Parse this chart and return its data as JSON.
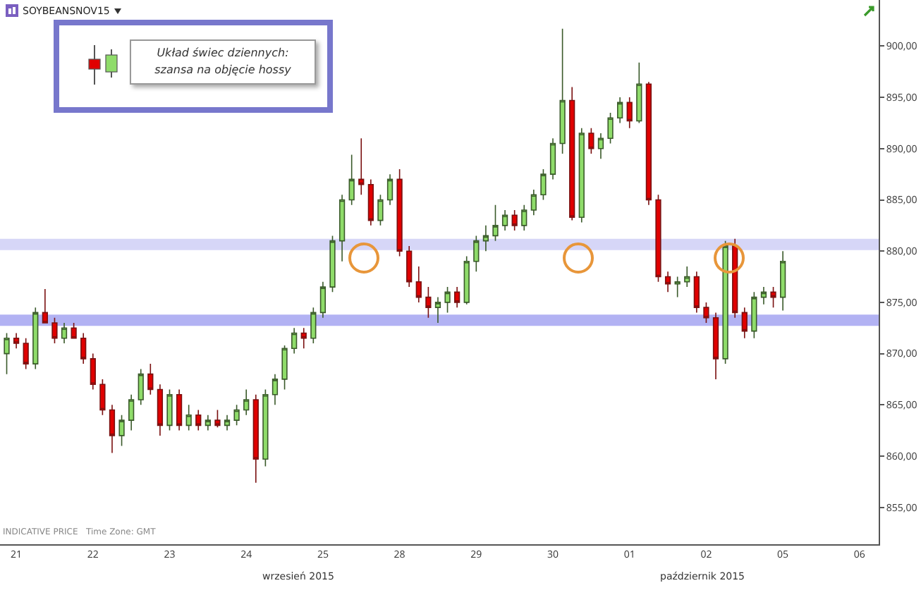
{
  "chart_data": {
    "type": "candlestick",
    "title": "SOYBEANSNOV15",
    "annotations": [
      "Układ świec dziennych:\nszansa na objęcie hossy",
      "INDICATIVE PRICE   Time Zone: GMT",
      "wrzesień 2015",
      "październik 2015"
    ],
    "categories": [
      null,
      "21",
      null,
      null,
      null,
      null,
      null,
      null,
      null,
      "22",
      null,
      null,
      null,
      null,
      null,
      null,
      null,
      "23",
      null,
      null,
      null,
      null,
      null,
      null,
      null,
      "24",
      null,
      null,
      null,
      null,
      null,
      null,
      null,
      "25",
      null,
      null,
      null,
      null,
      null,
      null,
      null,
      "28",
      null,
      null,
      null,
      null,
      null,
      null,
      null,
      "29",
      null,
      null,
      null,
      null,
      null,
      null,
      null,
      "30",
      null,
      null,
      null,
      null,
      null,
      null,
      null,
      "01",
      null,
      null,
      null,
      null,
      null,
      null,
      null,
      "02",
      null,
      null,
      null,
      null,
      null,
      null,
      null,
      "05",
      null,
      null,
      null,
      null,
      null,
      null,
      null,
      "06",
      null
    ],
    "ohlc": [
      [
        870,
        872,
        868,
        871.5
      ],
      [
        871.5,
        872,
        870.5,
        871
      ],
      [
        871,
        871.5,
        868.5,
        869
      ],
      [
        869,
        874.5,
        868.5,
        874
      ],
      [
        874,
        876.3,
        873,
        873
      ],
      [
        873,
        873.5,
        871,
        871.5
      ],
      [
        871.5,
        873,
        871,
        872.5
      ],
      [
        872.5,
        873,
        871.5,
        871.5
      ],
      [
        871.5,
        872,
        869,
        869.5
      ],
      [
        869.5,
        870,
        866.5,
        867
      ],
      [
        867,
        867.5,
        864,
        864.5
      ],
      [
        864.5,
        865,
        860.3,
        862
      ],
      [
        862,
        864,
        861,
        863.5
      ],
      [
        863.5,
        866,
        862.5,
        865.5
      ],
      [
        865.5,
        868.5,
        865,
        868
      ],
      [
        868,
        869,
        866,
        866.5
      ],
      [
        866.5,
        867,
        862,
        863
      ],
      [
        863,
        866.5,
        862.5,
        866
      ],
      [
        866,
        866.5,
        862.5,
        863
      ],
      [
        863,
        865,
        862.5,
        864
      ],
      [
        864,
        864.5,
        862.5,
        863
      ],
      [
        863,
        864,
        862.5,
        863.5
      ],
      [
        863.5,
        864.5,
        862.8,
        863
      ],
      [
        863,
        864,
        862.5,
        863.5
      ],
      [
        863.5,
        865,
        863,
        864.5
      ],
      [
        864.5,
        866.5,
        864,
        865.5
      ],
      [
        865.5,
        866,
        857.4,
        859.7
      ],
      [
        859.7,
        866.5,
        859,
        866
      ],
      [
        866,
        868,
        865,
        867.5
      ],
      [
        867.5,
        870.8,
        866.5,
        870.5
      ],
      [
        870.5,
        872.5,
        870,
        872
      ],
      [
        872,
        872.5,
        870.5,
        871.5
      ],
      [
        871.5,
        874.5,
        871,
        874
      ],
      [
        874,
        877,
        873.5,
        876.5
      ],
      [
        876.5,
        881.5,
        876,
        881
      ],
      [
        881,
        885.5,
        879,
        885
      ],
      [
        885,
        889.4,
        884.5,
        887
      ],
      [
        887,
        891,
        885.5,
        886.5
      ],
      [
        886.5,
        887,
        882.5,
        883
      ],
      [
        883,
        885.5,
        882.5,
        885
      ],
      [
        885,
        887.5,
        884.5,
        887
      ],
      [
        887,
        888,
        879.5,
        880
      ],
      [
        880,
        880.5,
        876.5,
        877
      ],
      [
        877,
        878.5,
        875,
        875.5
      ],
      [
        875.5,
        876.5,
        873.5,
        874.5
      ],
      [
        874.5,
        875.5,
        873,
        875
      ],
      [
        875,
        876.5,
        874,
        876
      ],
      [
        876,
        876.5,
        874.5,
        875
      ],
      [
        875,
        879.5,
        874.8,
        879
      ],
      [
        879,
        881.5,
        878,
        881
      ],
      [
        881,
        882.5,
        880,
        881.5
      ],
      [
        881.5,
        884.5,
        881,
        882.5
      ],
      [
        882.5,
        884,
        882,
        883.5
      ],
      [
        883.5,
        884,
        882,
        882.5
      ],
      [
        882.5,
        884.5,
        882,
        884
      ],
      [
        884,
        886,
        883.5,
        885.5
      ],
      [
        885.5,
        888,
        885,
        887.5
      ],
      [
        887.5,
        891,
        887,
        890.5
      ],
      [
        890.5,
        901.7,
        889.5,
        894.7
      ],
      [
        894.7,
        896,
        883,
        883.3
      ],
      [
        883.3,
        892,
        882.8,
        891.5
      ],
      [
        891.5,
        892,
        889.5,
        890
      ],
      [
        890,
        891.5,
        889,
        891
      ],
      [
        891,
        893.5,
        890.5,
        893
      ],
      [
        893,
        895,
        892.5,
        894.5
      ],
      [
        894.5,
        895,
        892,
        892.7
      ],
      [
        892.7,
        898.4,
        892.5,
        896.3
      ],
      [
        896.3,
        896.5,
        884.5,
        885
      ],
      [
        885,
        885.5,
        877,
        877.5
      ],
      [
        877.5,
        878,
        876,
        876.8
      ],
      [
        876.8,
        877.5,
        875.5,
        877
      ],
      [
        877,
        878.5,
        876.5,
        877.5
      ],
      [
        877.5,
        878,
        874,
        874.5
      ],
      [
        874.5,
        875,
        873,
        873.5
      ],
      [
        873.5,
        874,
        867.5,
        869.5
      ],
      [
        869.5,
        881,
        869,
        880.5
      ],
      [
        880.5,
        881.2,
        873.5,
        874
      ],
      [
        874,
        874.5,
        871.5,
        872.2
      ],
      [
        872.2,
        876,
        871.5,
        875.5
      ],
      [
        875.5,
        876.5,
        874.8,
        876
      ],
      [
        876,
        876.5,
        874.5,
        875.5
      ],
      [
        875.5,
        880,
        874.2,
        879
      ],
      null,
      null,
      null,
      null,
      null,
      null,
      null,
      null,
      null
    ],
    "ylim": [
      851.4,
      904.5
    ],
    "yticks": [
      {
        "value": 855,
        "label": "855,00"
      },
      {
        "value": 860,
        "label": "860,00"
      },
      {
        "value": 865,
        "label": "865,00"
      },
      {
        "value": 870,
        "label": "870,00"
      },
      {
        "value": 875,
        "label": "875,00"
      },
      {
        "value": 880,
        "label": "880,00"
      },
      {
        "value": 885,
        "label": "885,00"
      },
      {
        "value": 890,
        "label": "890,00"
      },
      {
        "value": 895,
        "label": "895,00"
      },
      {
        "value": 900,
        "label": "900,00"
      }
    ],
    "bands": [
      {
        "axis": "y",
        "from": 880.1,
        "to": 881.2,
        "color": "#ccccf5"
      },
      {
        "axis": "y",
        "from": 872.7,
        "to": 873.8,
        "color": "#9f9ff0"
      }
    ],
    "grid": false
  }
}
